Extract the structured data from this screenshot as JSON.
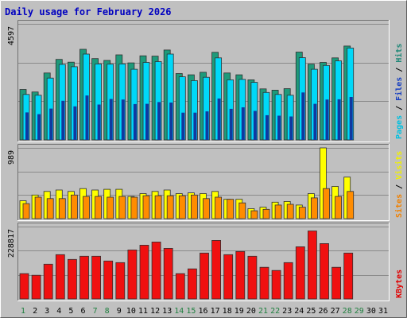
{
  "chart_data": {
    "type": "bar",
    "title": "Daily usage for February 2026",
    "days": [
      "1",
      "2",
      "3",
      "4",
      "5",
      "6",
      "7",
      "8",
      "9",
      "10",
      "11",
      "12",
      "13",
      "14",
      "15",
      "16",
      "17",
      "18",
      "19",
      "20",
      "21",
      "22",
      "23",
      "24",
      "25",
      "26",
      "27",
      "28",
      "29",
      "30",
      "31"
    ],
    "data_days": 28,
    "weekend_days": [
      1,
      7,
      8,
      14,
      15,
      21,
      22,
      28,
      29
    ],
    "panels": [
      {
        "id": "top",
        "max_label": "4597",
        "ymax": 4597,
        "right_label": [
          "Pages",
          "Files",
          "Hits"
        ],
        "right_colors": [
          "#00c0e0",
          "#1840c0",
          "#208878"
        ],
        "series": [
          {
            "name": "Hits",
            "color": "#1e9a7a",
            "values": [
              2000,
              1900,
              2650,
              3190,
              3080,
              3590,
              3220,
              3150,
              3370,
              3050,
              3330,
              3320,
              3560,
              2630,
              2580,
              2680,
              3470,
              2650,
              2580,
              2380,
              2020,
              1970,
              2030,
              3480,
              3000,
              3070,
              3250,
              3720
            ]
          },
          {
            "name": "Files",
            "color": "#00d8f8",
            "values": [
              1800,
              1770,
              2450,
              2990,
              2900,
              3400,
              3010,
              3000,
              3010,
              2800,
              3070,
              3100,
              3400,
              2500,
              2350,
              2480,
              3250,
              2380,
              2400,
              2280,
              1880,
              1800,
              1770,
              3260,
              2800,
              2950,
              3130,
              3640
            ]
          },
          {
            "name": "Pages",
            "color": "#1038a0",
            "values": [
              1090,
              1020,
              1240,
              1550,
              1330,
              1760,
              1400,
              1620,
              1600,
              1420,
              1430,
              1500,
              1480,
              1080,
              1080,
              1130,
              1640,
              1230,
              1290,
              1150,
              980,
              960,
              930,
              1880,
              1430,
              1600,
              1610,
              1700
            ]
          }
        ]
      },
      {
        "id": "mid",
        "max_label": "989",
        "ymax": 989,
        "right_label": [
          "Sites",
          "Visits"
        ],
        "right_colors": [
          "#f08000",
          "#f0f000"
        ],
        "series": [
          {
            "name": "Visits",
            "color": "#ffff00",
            "values": [
              250,
              330,
              380,
              400,
              380,
              420,
              400,
              410,
              410,
              310,
              350,
              380,
              400,
              350,
              360,
              350,
              380,
              270,
              270,
              140,
              160,
              230,
              240,
              190,
              350,
              989,
              450,
              580
            ]
          },
          {
            "name": "Sites",
            "color": "#ff8c00",
            "values": [
              210,
              300,
              280,
              280,
              330,
              310,
              310,
              300,
              310,
              300,
              320,
              320,
              320,
              320,
              330,
              280,
              300,
              270,
              220,
              110,
              130,
              190,
              200,
              160,
              290,
              420,
              310,
              380
            ]
          }
        ]
      },
      {
        "id": "bot",
        "max_label": "228817",
        "ymax": 228817,
        "right_label": [
          "KBytes"
        ],
        "right_colors": [
          "#e00000"
        ],
        "series": [
          {
            "name": "KBytes",
            "color": "#f01010",
            "values": [
              80000,
              75000,
              110000,
              140000,
              125000,
              135000,
              135000,
              120000,
              115000,
              155000,
              170000,
              180000,
              160000,
              80000,
              95000,
              145000,
              185000,
              140000,
              150000,
              135000,
              100000,
              90000,
              115000,
              165000,
              215000,
              175000,
              100000,
              145000
            ]
          }
        ]
      }
    ]
  }
}
